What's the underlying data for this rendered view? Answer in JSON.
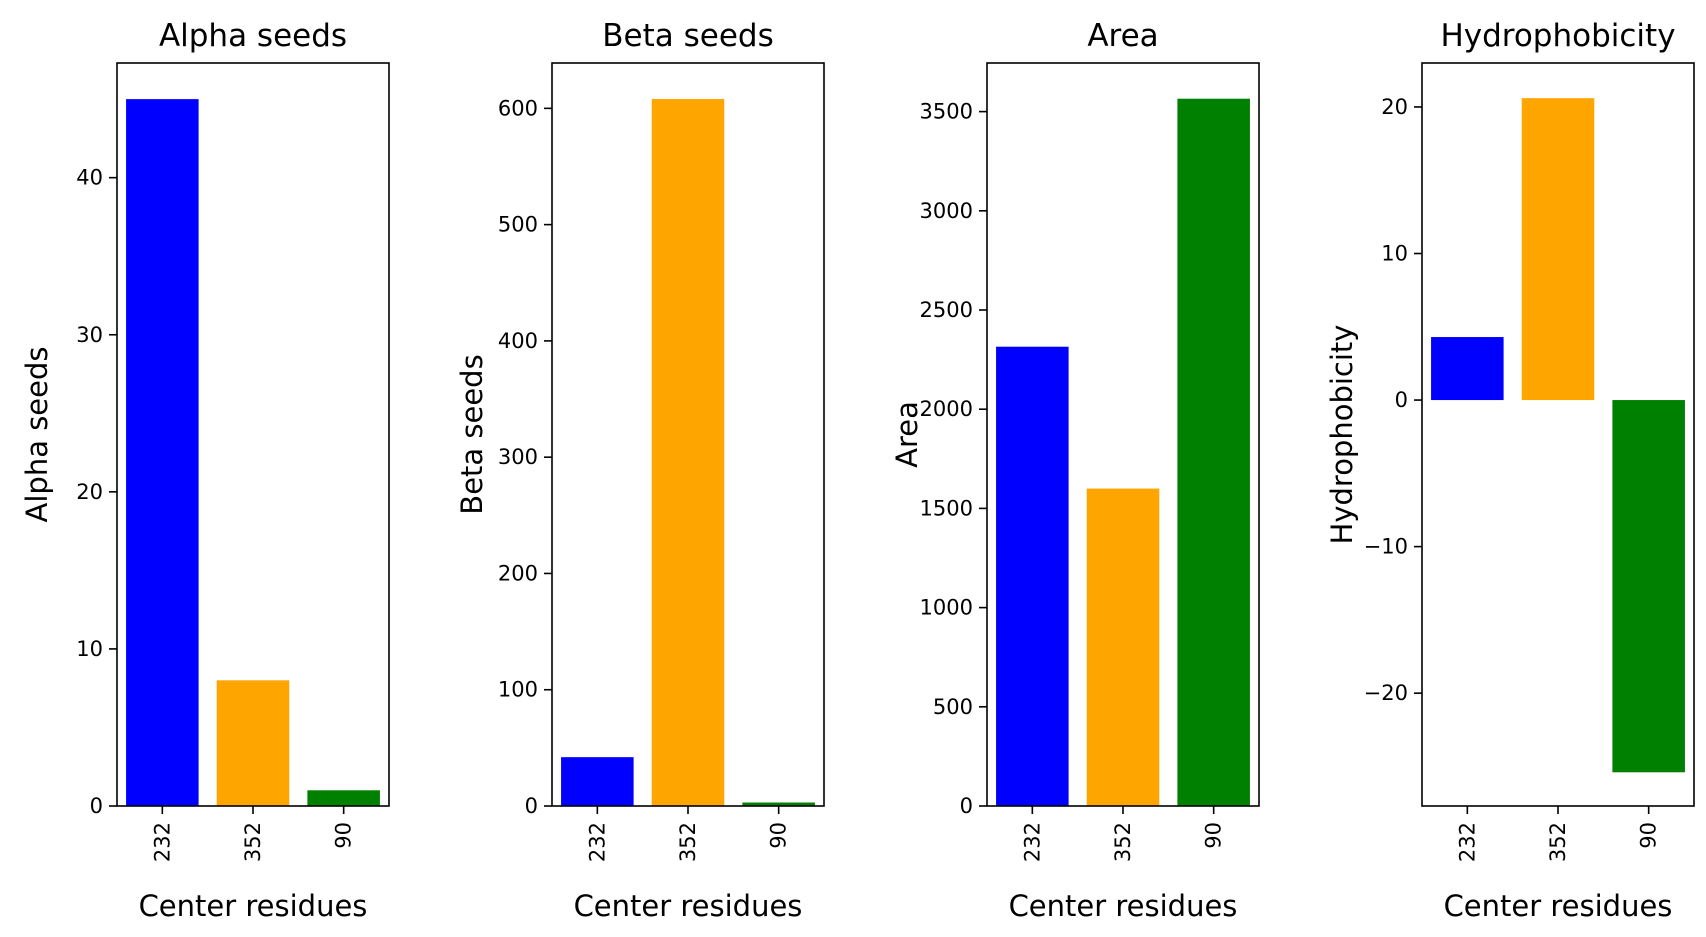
{
  "chart_data": [
    {
      "type": "bar",
      "title": "Alpha seeds",
      "xlabel": "Center residues",
      "ylabel": "Alpha seeds",
      "categories": [
        "232",
        "352",
        "90"
      ],
      "values": [
        45,
        8,
        1
      ],
      "colors": [
        "#0000ff",
        "#ffa500",
        "#008000"
      ],
      "ylim": [
        0,
        47.3
      ],
      "yticks": [
        0,
        10,
        20,
        30,
        40
      ],
      "ytick_labels": [
        "0",
        "10",
        "20",
        "30",
        "40"
      ],
      "grid": false,
      "legend": "none"
    },
    {
      "type": "bar",
      "title": "Beta seeds",
      "xlabel": "Center residues",
      "ylabel": "Beta seeds",
      "categories": [
        "232",
        "352",
        "90"
      ],
      "values": [
        42,
        608,
        3
      ],
      "colors": [
        "#0000ff",
        "#ffa500",
        "#008000"
      ],
      "ylim": [
        0,
        639
      ],
      "yticks": [
        0,
        100,
        200,
        300,
        400,
        500,
        600
      ],
      "ytick_labels": [
        "0",
        "100",
        "200",
        "300",
        "400",
        "500",
        "600"
      ],
      "grid": false,
      "legend": "none"
    },
    {
      "type": "bar",
      "title": "Area",
      "xlabel": "Center residues",
      "ylabel": "Area",
      "categories": [
        "232",
        "352",
        "90"
      ],
      "values": [
        2315,
        1600,
        3565
      ],
      "colors": [
        "#0000ff",
        "#ffa500",
        "#008000"
      ],
      "ylim": [
        0,
        3745
      ],
      "yticks": [
        0,
        500,
        1000,
        1500,
        2000,
        2500,
        3000,
        3500
      ],
      "ytick_labels": [
        "0",
        "500",
        "1000",
        "1500",
        "2000",
        "2500",
        "3000",
        "3500"
      ],
      "grid": false,
      "legend": "none"
    },
    {
      "type": "bar",
      "title": "Hydrophobicity",
      "xlabel": "Center residues",
      "ylabel": "Hydrophobicity",
      "categories": [
        "232",
        "352",
        "90"
      ],
      "values": [
        4.3,
        20.6,
        -25.4
      ],
      "colors": [
        "#0000ff",
        "#ffa500",
        "#008000"
      ],
      "ylim": [
        -27.7,
        23
      ],
      "yticks": [
        -20,
        -10,
        0,
        10,
        20
      ],
      "ytick_labels": [
        "−20",
        "−10",
        "0",
        "10",
        "20"
      ],
      "grid": false,
      "legend": "none"
    }
  ]
}
